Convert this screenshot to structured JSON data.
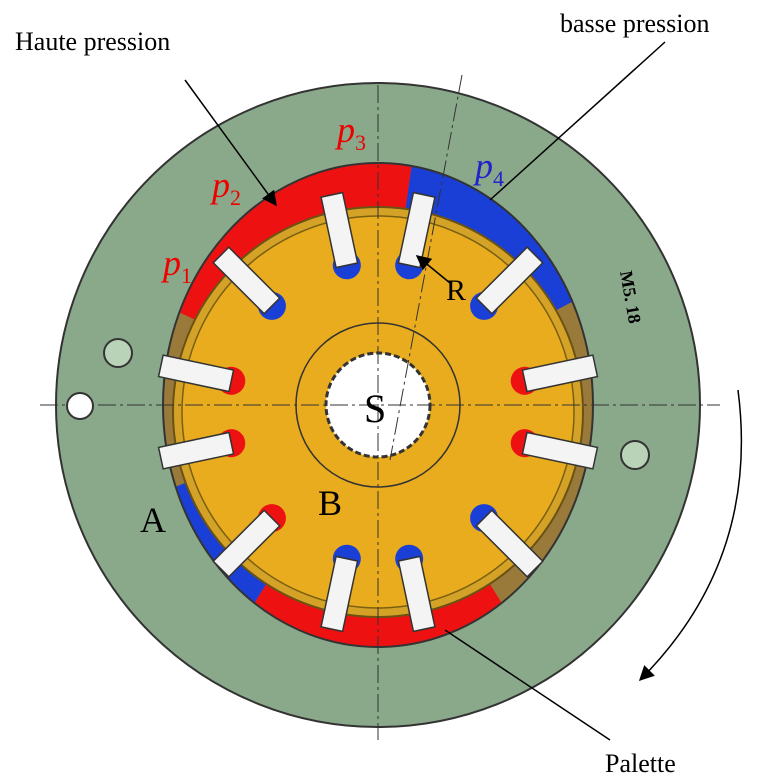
{
  "callouts": {
    "high_pressure": "Haute pression",
    "low_pressure": "basse pression",
    "vane": "Palette"
  },
  "pressures": [
    {
      "symbol": "p",
      "index": "1"
    },
    {
      "symbol": "p",
      "index": "2"
    },
    {
      "symbol": "p",
      "index": "3"
    },
    {
      "symbol": "p",
      "index": "4"
    }
  ],
  "points": {
    "R": "R",
    "S": "S",
    "A": "A",
    "B": "B"
  },
  "engraving": "M5. 18"
}
